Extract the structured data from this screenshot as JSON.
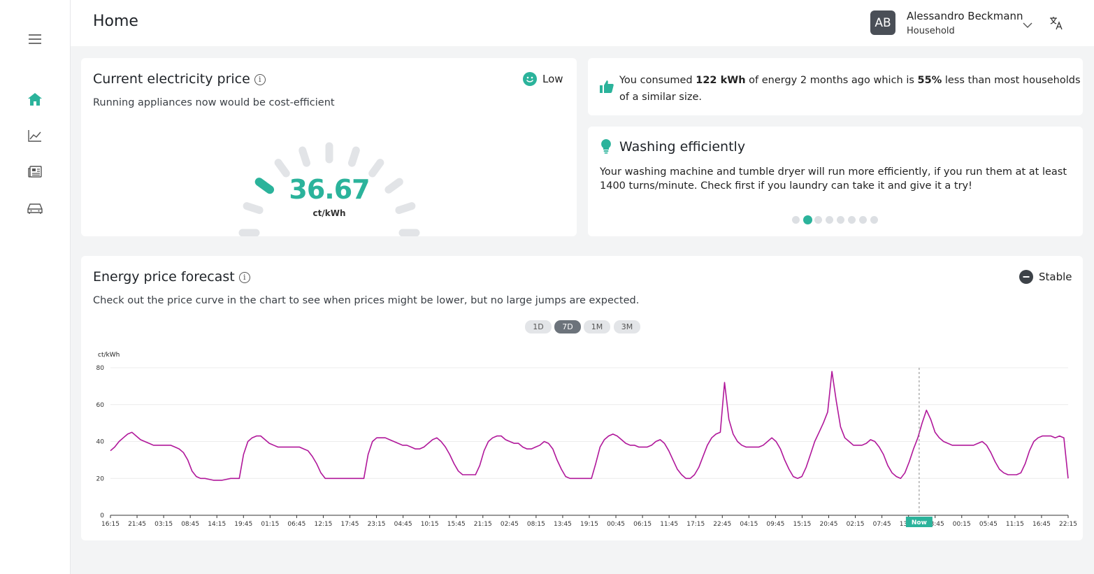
{
  "header": {
    "title": "Home",
    "user_initials": "AB",
    "user_name": "Alessandro Beckmann",
    "user_role": "Household"
  },
  "sidebar": {
    "items": [
      {
        "icon": "menu-icon"
      },
      {
        "icon": "home-icon",
        "active": true
      },
      {
        "icon": "chart-icon"
      },
      {
        "icon": "news-icon"
      },
      {
        "icon": "car-icon"
      }
    ]
  },
  "price_card": {
    "title": "Current electricity price",
    "subtitle": "Running appliances now would be cost-efficient",
    "level": "Low",
    "value": "36.67",
    "unit": "ct/kWh",
    "gauge_segments": 11,
    "gauge_active_index": 2
  },
  "consumption_card": {
    "part1": "You consumed ",
    "kwh": "122 kWh",
    "part2": " of energy 2 months ago which is ",
    "pct": "55%",
    "part3": " less than most households of a similar size."
  },
  "tip_card": {
    "title": "Washing efficiently",
    "text": "Your washing machine and tumble dryer will run more efficiently, if you run them at at least 1400 turns/minute. Check first if you laundry can take it and give it a try!",
    "dots": 8,
    "active_dot": 1
  },
  "forecast_card": {
    "title": "Energy price forecast",
    "subtitle": "Check out the price curve in the chart to see when prices might be lower, but no large jumps are expected.",
    "trend": "Stable",
    "ranges": [
      "1D",
      "7D",
      "1M",
      "3M"
    ],
    "active_range": "7D",
    "now_label": "Now"
  },
  "colors": {
    "accent": "#2bb39b",
    "series": "#b0179a",
    "dark": "#3d4248"
  },
  "chart_data": {
    "type": "line",
    "ylabel": "ct/kWh",
    "ylim": [
      0,
      80
    ],
    "yticks": [
      0,
      20,
      40,
      60,
      80
    ],
    "xticks": [
      "16:15",
      "21:45",
      "03:15",
      "08:45",
      "14:15",
      "19:45",
      "01:15",
      "06:45",
      "12:15",
      "17:45",
      "23:15",
      "04:45",
      "10:15",
      "15:45",
      "21:15",
      "02:45",
      "08:15",
      "13:45",
      "19:15",
      "00:45",
      "06:15",
      "11:45",
      "17:15",
      "22:45",
      "04:15",
      "09:45",
      "15:15",
      "20:45",
      "02:15",
      "07:45",
      "13:15",
      "18:45",
      "00:15",
      "05:45",
      "11:15",
      "16:45",
      "22:15"
    ],
    "now_index": 30.4,
    "series": [
      {
        "values": [
          35,
          37,
          40,
          42,
          44,
          45,
          43,
          41,
          40,
          39,
          38,
          38,
          38,
          38,
          38,
          37,
          36,
          34,
          30,
          24,
          21,
          20,
          20,
          19.5,
          19,
          19,
          19,
          19.5,
          20,
          20,
          20,
          33,
          40,
          42,
          43,
          43,
          41,
          39,
          38,
          37,
          37,
          37,
          37,
          37,
          37,
          36,
          35,
          32,
          28,
          23,
          20,
          20,
          20,
          20,
          20,
          20,
          20,
          20,
          20,
          20,
          33,
          40,
          42,
          42,
          42,
          41,
          40,
          39,
          38,
          38,
          37,
          36,
          36,
          37,
          39,
          41,
          42,
          40,
          37,
          33,
          28,
          24,
          22,
          22,
          22,
          22,
          27,
          35,
          40,
          42,
          43,
          43,
          41,
          40,
          39,
          39,
          37,
          36,
          36,
          37,
          38,
          40,
          39,
          36,
          30,
          25,
          21,
          20,
          20,
          20,
          20,
          20,
          20,
          28,
          37,
          41,
          43,
          44,
          43,
          41,
          39,
          38,
          38,
          37,
          37,
          37,
          38,
          40,
          41,
          39,
          35,
          30,
          25,
          22,
          20,
          20,
          22,
          26,
          32,
          38,
          42,
          44,
          45,
          72,
          52,
          44,
          40,
          38,
          37,
          37,
          37,
          37,
          38,
          40,
          42,
          40,
          36,
          30,
          25,
          21,
          20,
          21,
          26,
          33,
          40,
          45,
          50,
          56,
          78,
          62,
          48,
          42,
          40,
          38,
          38,
          38,
          39,
          41,
          40,
          37,
          33,
          27,
          23,
          21,
          20,
          23,
          29,
          36,
          42,
          50,
          57,
          52,
          45,
          42,
          40,
          39,
          38,
          38,
          38,
          38,
          38,
          38,
          39,
          40,
          38,
          34,
          29,
          25,
          23,
          22,
          22,
          22,
          23,
          28,
          35,
          40,
          42,
          43,
          43,
          43,
          42,
          43,
          42,
          20
        ]
      }
    ]
  }
}
